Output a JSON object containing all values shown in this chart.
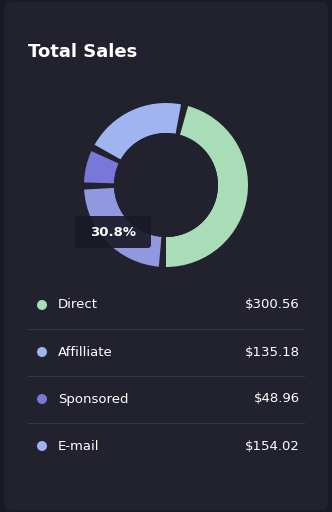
{
  "title": "Total Sales",
  "background_color": "#1a1a26",
  "card_color": "#22222e",
  "title_color": "#ffffff",
  "title_fontsize": 13,
  "donut_values": [
    300.56,
    135.18,
    48.96,
    154.02
  ],
  "donut_colors": [
    "#a8ddb8",
    "#a0b4f0",
    "#7878d8",
    "#9098e0"
  ],
  "center_label": "30.8%",
  "center_label_bg": "#1a1a26",
  "center_label_color": "#ffffff",
  "legend_items": [
    {
      "label": "Direct",
      "value": "$300.56",
      "color": "#a8ddb8"
    },
    {
      "label": "Affilliate",
      "value": "$135.18",
      "color": "#a0b4f0"
    },
    {
      "label": "Sponsored",
      "value": "$48.96",
      "color": "#7878d8"
    },
    {
      "label": "E-mail",
      "value": "$154.02",
      "color": "#a0b0f0"
    }
  ],
  "legend_label_color": "#ffffff",
  "legend_value_color": "#ffffff",
  "legend_fontsize": 9.5,
  "figsize": [
    3.32,
    5.12
  ],
  "dpi": 100
}
